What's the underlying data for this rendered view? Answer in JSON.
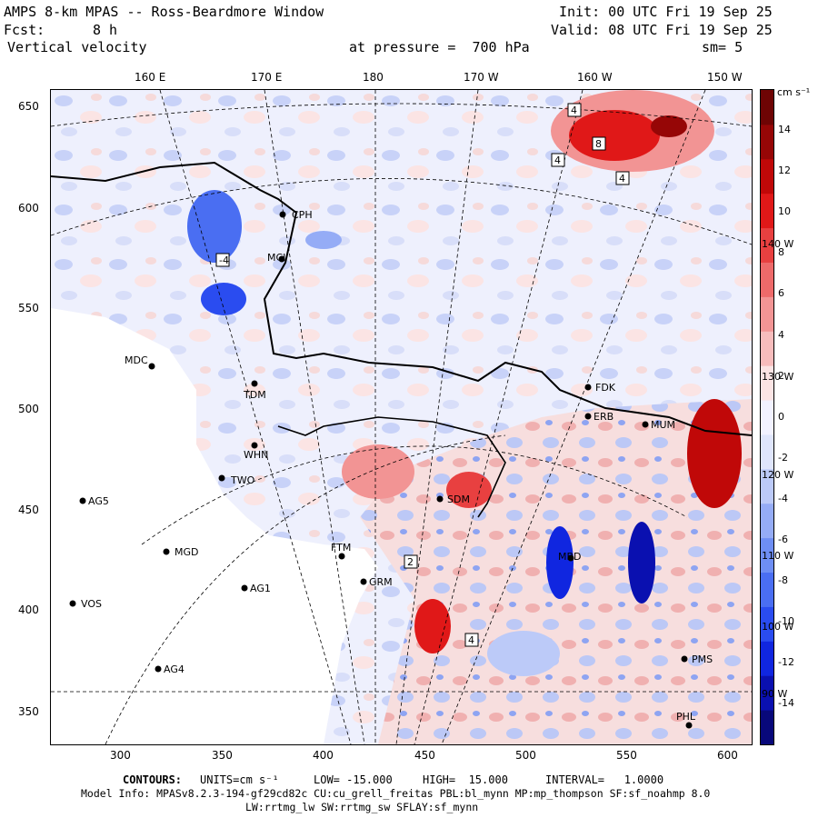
{
  "header": {
    "title": "AMPS 8-km MPAS -- Ross-Beardmore Window",
    "init": "Init: 00 UTC Fri 19 Sep 25",
    "fcst_label": "Fcst:",
    "fcst_value": "8 h",
    "valid": "Valid: 08 UTC Fri 19 Sep 25",
    "field": "Vertical velocity",
    "pressure": "at pressure =  700 hPa",
    "smoothing": "sm= 5"
  },
  "longitude_labels": [
    "160 E",
    "170 E",
    "180",
    "170 W",
    "160 W",
    "150 W"
  ],
  "right_lon_labels": [
    "140 W",
    "130 W",
    "120 W",
    "110 W",
    "100 W",
    "90 W"
  ],
  "y_ticks": [
    "650",
    "600",
    "550",
    "500",
    "450",
    "400",
    "350"
  ],
  "x_ticks": [
    "300",
    "350",
    "400",
    "450",
    "500",
    "550",
    "600"
  ],
  "colorbar": {
    "unit": "cm s⁻¹",
    "ticks": [
      "14",
      "12",
      "10",
      "8",
      "6",
      "4",
      "2",
      "0",
      "-2",
      "-4",
      "-6",
      "-8",
      "-10",
      "-12",
      "-14"
    ],
    "colors": [
      "#08087a",
      "#0a10b0",
      "#1026e0",
      "#2a4cf0",
      "#4a6ef2",
      "#6e8ef4",
      "#95acf6",
      "#bccaf8",
      "#dfe5fb",
      "#f2f2ff",
      "#fbe4e4",
      "#f7bcbc",
      "#f29494",
      "#ee6a6a",
      "#e84040",
      "#e01818",
      "#c00808",
      "#960606",
      "#6e0404"
    ]
  },
  "stations": [
    {
      "code": "MDC"
    },
    {
      "code": "TDM"
    },
    {
      "code": "CPH"
    },
    {
      "code": "MCI"
    },
    {
      "code": "WHN"
    },
    {
      "code": "TWO"
    },
    {
      "code": "AG5"
    },
    {
      "code": "MGD"
    },
    {
      "code": "AG1"
    },
    {
      "code": "VOS"
    },
    {
      "code": "AG4"
    },
    {
      "code": "FTM"
    },
    {
      "code": "GRM"
    },
    {
      "code": "SDM"
    },
    {
      "code": "MBD"
    },
    {
      "code": "FDK"
    },
    {
      "code": "ERB"
    },
    {
      "code": "MUM"
    },
    {
      "code": "PMS"
    },
    {
      "code": "PHL"
    }
  ],
  "contour_labels": [
    "4",
    "8",
    "4",
    "4",
    "-4",
    "4",
    "2"
  ],
  "footer": {
    "contours_label": "CONTOURS:",
    "units": "UNITS=cm s⁻¹",
    "low": "LOW= -15.000",
    "high": "HIGH=  15.000",
    "interval": "INTERVAL=   1.0000",
    "model_info": "Model Info: MPASv8.2.3-194-gf29cd82c CU:cu_grell_freitas PBL:bl_mynn MP:mp_thompson SF:sf_noahmp 8.0",
    "model_info_2": "LW:rrtmg_lw SW:rrtmg_sw SFLAY:sf_mynn"
  }
}
